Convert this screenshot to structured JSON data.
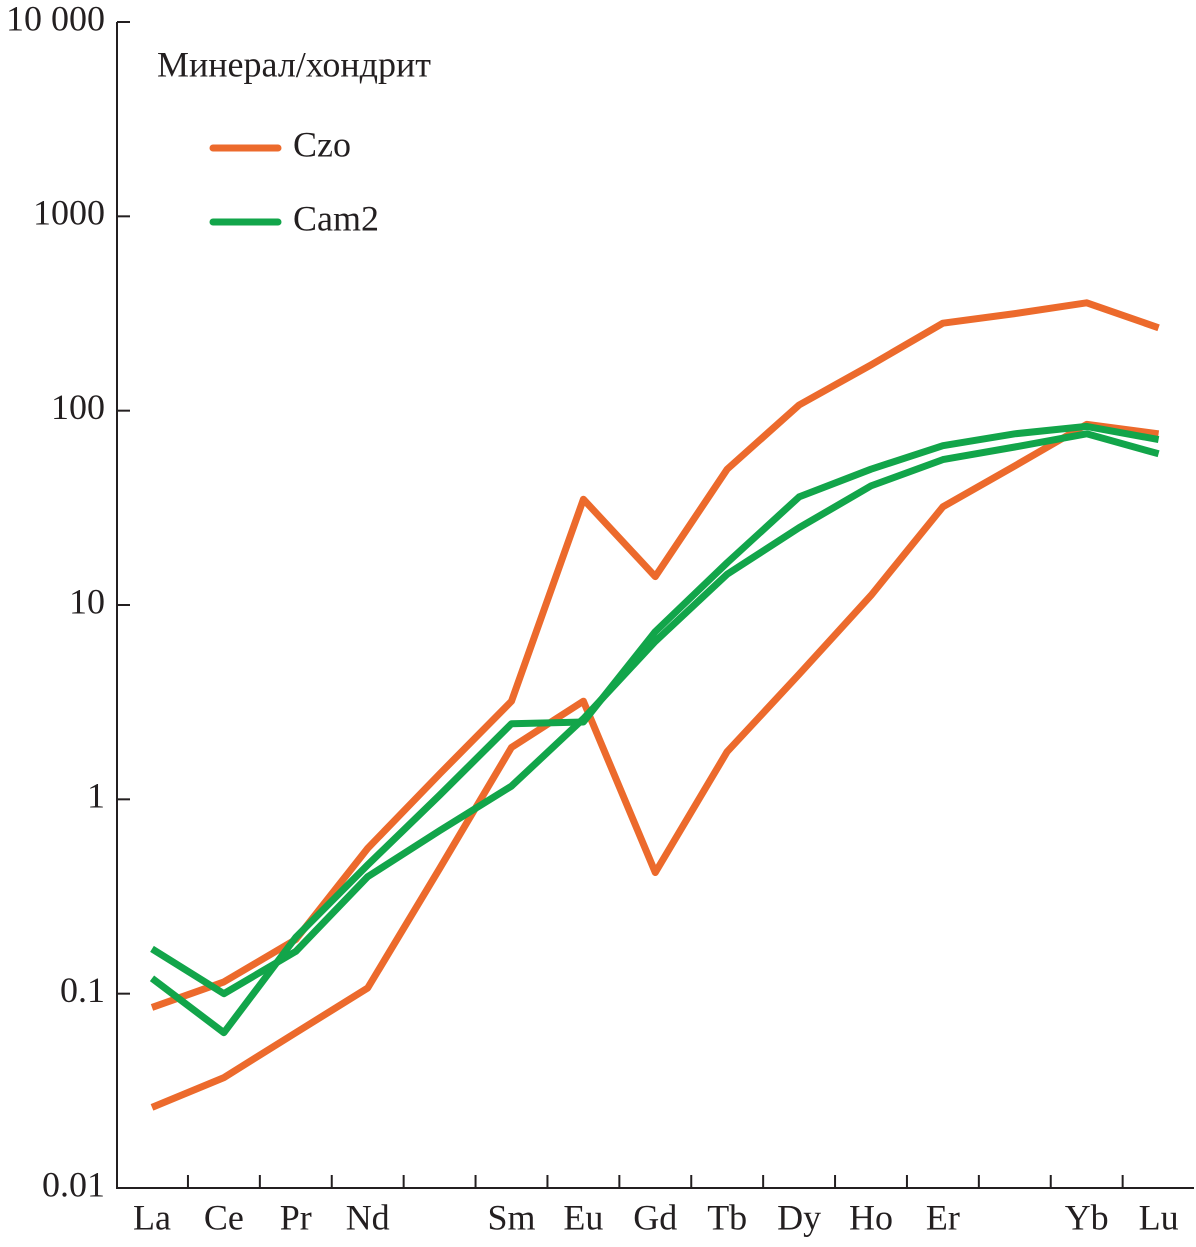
{
  "chart_data": {
    "type": "line",
    "ylabel": "Минерал/хондрит",
    "categories": [
      "La",
      "Ce",
      "Pr",
      "Nd",
      null,
      "Sm",
      "Eu",
      "Gd",
      "Tb",
      "Dy",
      "Ho",
      "Er",
      null,
      "Yb",
      "Lu"
    ],
    "series": [
      {
        "name": "Czo",
        "color": "#ec6a2c",
        "values": [
          0.085,
          0.115,
          0.19,
          0.56,
          1.35,
          3.2,
          35,
          14,
          50,
          107,
          172,
          282,
          316,
          359,
          267
        ]
      },
      {
        "name": "Czo",
        "color": "#ec6a2c",
        "values": [
          0.026,
          0.037,
          0.063,
          0.107,
          0.44,
          1.85,
          3.2,
          0.42,
          1.76,
          4.4,
          11.2,
          32,
          52,
          85,
          76
        ]
      },
      {
        "name": "Cam2",
        "color": "#12a54a",
        "values": [
          0.17,
          0.1,
          0.165,
          0.4,
          0.69,
          1.17,
          2.6,
          6.5,
          14.4,
          25,
          41,
          56,
          65,
          76,
          60
        ]
      },
      {
        "name": "Cam2",
        "color": "#12a54a",
        "values": [
          0.12,
          0.063,
          0.195,
          0.46,
          1.05,
          2.45,
          2.5,
          7.3,
          16.5,
          36,
          50,
          66,
          76,
          83,
          71
        ]
      }
    ],
    "log_y": true,
    "ylim": [
      0.01,
      10000
    ],
    "yticks": [
      0.01,
      0.1,
      1,
      10,
      100,
      1000,
      {
        "value": 10000,
        "label": "10 000"
      }
    ],
    "legend": "upper left"
  }
}
